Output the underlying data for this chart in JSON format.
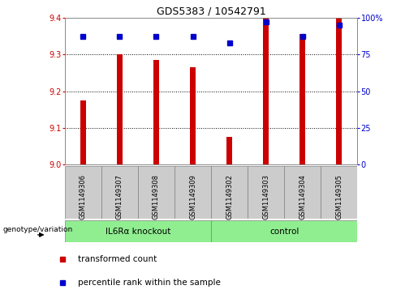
{
  "title": "GDS5383 / 10542791",
  "samples": [
    "GSM1149306",
    "GSM1149307",
    "GSM1149308",
    "GSM1149309",
    "GSM1149302",
    "GSM1149303",
    "GSM1149304",
    "GSM1149305"
  ],
  "red_values": [
    9.175,
    9.3,
    9.285,
    9.265,
    9.075,
    9.4,
    9.355,
    9.4
  ],
  "blue_values": [
    87,
    87,
    87,
    87,
    83,
    97,
    87,
    95
  ],
  "ylim_left": [
    9.0,
    9.4
  ],
  "ylim_right": [
    0,
    100
  ],
  "yticks_left": [
    9.0,
    9.1,
    9.2,
    9.3,
    9.4
  ],
  "yticks_right": [
    0,
    25,
    50,
    75,
    100
  ],
  "ytick_right_labels": [
    "0",
    "25",
    "50",
    "75",
    "100%"
  ],
  "groups": [
    {
      "label": "IL6Rα knockout",
      "indices": [
        0,
        1,
        2,
        3
      ],
      "color": "#90EE90"
    },
    {
      "label": "control",
      "indices": [
        4,
        5,
        6,
        7
      ],
      "color": "#90EE90"
    }
  ],
  "bar_color": "#CC0000",
  "dot_color": "#0000CC",
  "grid_color": "#000000",
  "cell_bg": "#CCCCCC",
  "background_color": "#ffffff",
  "genotype_label": "genotype/variation",
  "legend_red": "transformed count",
  "legend_blue": "percentile rank within the sample",
  "bar_width": 0.15
}
